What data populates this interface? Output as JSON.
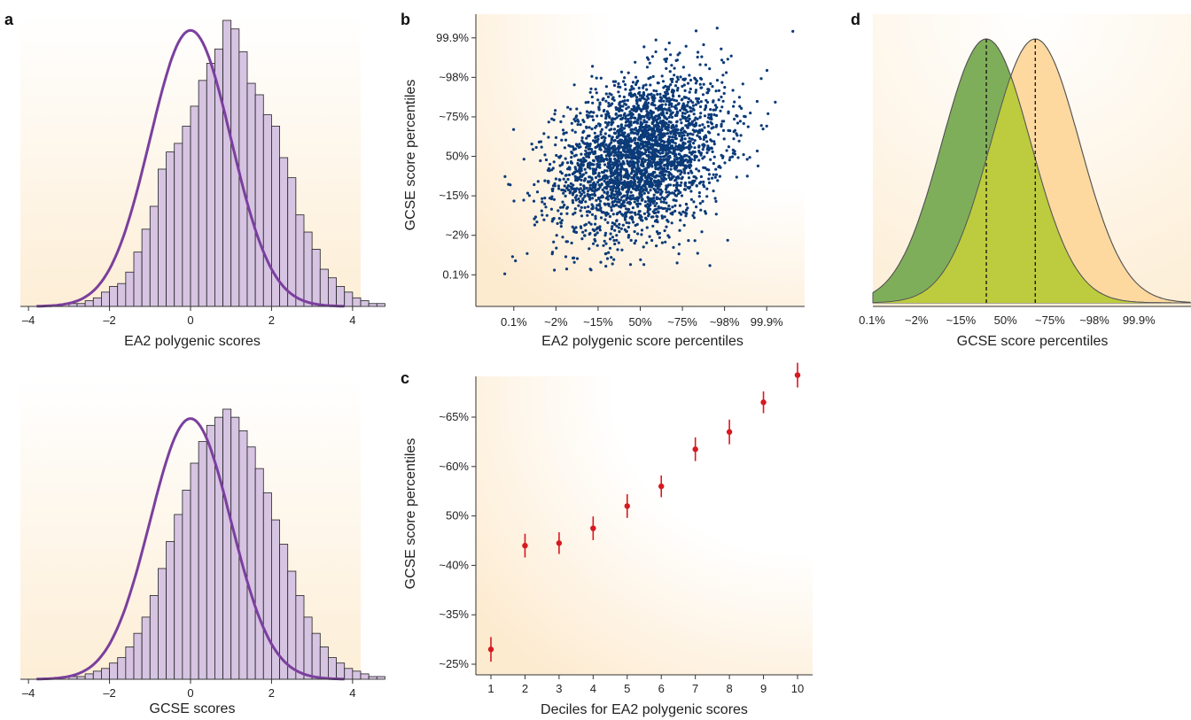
{
  "panels": {
    "a": {
      "label": "a"
    },
    "b": {
      "label": "b"
    },
    "c": {
      "label": "c"
    },
    "d": {
      "label": "d"
    }
  },
  "chart_data": [
    {
      "id": "a-top",
      "type": "bar",
      "xlabel": "EA2 polygenic scores",
      "ylabel": "",
      "xlim": [
        -4.2,
        4.2
      ],
      "xticks": [
        -4,
        -2,
        0,
        2,
        4
      ],
      "xtick_labels": [
        "–4",
        "–2",
        "0",
        "2",
        "4"
      ],
      "bin_start": -3.0,
      "bin_width": 0.2,
      "bin_heights": [
        1,
        1,
        2,
        3,
        5,
        7,
        8,
        12,
        19,
        27,
        35,
        48,
        54,
        57,
        63,
        70,
        79,
        85,
        90,
        100,
        97,
        89,
        78,
        74,
        67,
        63,
        52,
        45,
        32,
        26,
        20,
        13,
        10,
        7,
        5,
        3,
        2,
        1,
        1
      ],
      "fit_curve": "normal",
      "fit_color": "#7b3f9e",
      "bar_color": "#d6c4e2",
      "background_color": "#fdf0dc"
    },
    {
      "id": "a-bottom",
      "type": "bar",
      "xlabel": "GCSE scores",
      "ylabel": "",
      "xlim": [
        -4.2,
        4.2
      ],
      "xticks": [
        -4,
        -2,
        0,
        2,
        4
      ],
      "xtick_labels": [
        "–4",
        "–2",
        "0",
        "2",
        "4"
      ],
      "bin_start": -3.0,
      "bin_width": 0.2,
      "bin_heights": [
        1,
        1,
        2,
        3,
        4,
        6,
        8,
        12,
        17,
        23,
        31,
        41,
        51,
        61,
        70,
        80,
        88,
        94,
        97,
        100,
        97,
        92,
        86,
        78,
        69,
        59,
        50,
        40,
        31,
        23,
        17,
        12,
        8,
        6,
        4,
        3,
        2,
        1,
        1
      ],
      "fit_curve": "normal",
      "fit_color": "#7b3f9e",
      "bar_color": "#d6c4e2",
      "background_color": "#fdf0dc"
    },
    {
      "id": "b",
      "type": "scatter",
      "xlabel": "EA2 polygenic score percentiles",
      "ylabel": "GCSE score percentiles",
      "xtick_labels": [
        "0.1%",
        "~2%",
        "~15%",
        "50%",
        "~75%",
        "~98%",
        "99.9%"
      ],
      "ytick_labels": [
        "0.1%",
        "~2%",
        "~15%",
        "50%",
        "~75%",
        "~98%",
        "99.9%"
      ],
      "xlim_sd": [
        -3.9,
        3.9
      ],
      "ylim_sd": [
        -3.8,
        3.6
      ],
      "n_points": 3000,
      "correlation": 0.3,
      "point_color": "#0b3a78",
      "background_color": "#fdf0dc"
    },
    {
      "id": "c",
      "type": "scatter",
      "xlabel": "Deciles for EA2 polygenic scores",
      "ylabel": "GCSE score percentiles",
      "x": [
        1,
        2,
        3,
        4,
        5,
        6,
        7,
        8,
        9,
        10
      ],
      "ytick_labels": [
        "~25%",
        "~35%",
        "~40%",
        "50%",
        "~60%",
        "~65%"
      ],
      "ylim_ticks": [
        0,
        5.8
      ],
      "y_tick_positions": [
        0,
        1,
        2,
        3,
        4,
        5
      ],
      "y": [
        0.3,
        2.4,
        2.45,
        2.75,
        3.2,
        3.6,
        4.35,
        4.7,
        5.3,
        5.85
      ],
      "err": [
        0.25,
        0.24,
        0.22,
        0.24,
        0.24,
        0.22,
        0.24,
        0.25,
        0.22,
        0.25
      ],
      "point_color": "#d71920",
      "background_color": "#fdf0dc"
    },
    {
      "id": "d",
      "type": "area",
      "xlabel": "GCSE score percentiles",
      "ylabel": "",
      "xtick_labels": [
        "0.1%",
        "~2%",
        "~15%",
        "50%",
        "~75%",
        "~98%",
        "99.9%"
      ],
      "xlim_sd": [
        -3.9,
        3.9
      ],
      "series": [
        {
          "mean": -0.55,
          "sd": 1.0,
          "color": "#7fae5a"
        },
        {
          "mean": 0.55,
          "sd": 1.0,
          "color": "#fdd9a0"
        }
      ],
      "overlap_color": "#bccc3e",
      "background_color": "#fdf0dc"
    }
  ]
}
